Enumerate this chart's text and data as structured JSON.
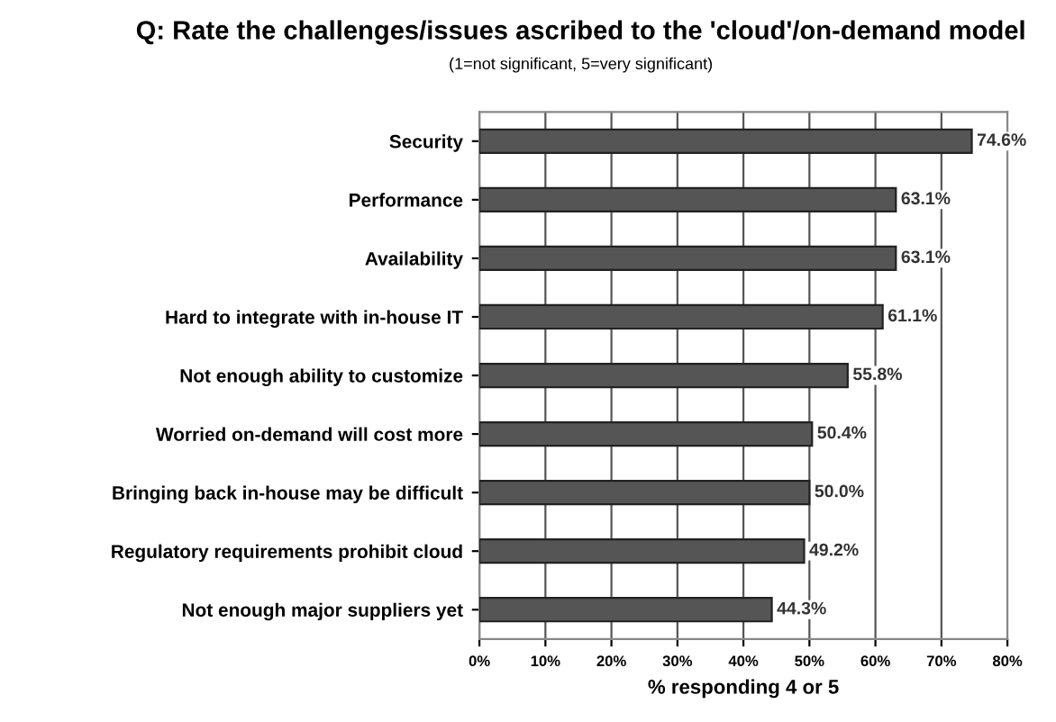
{
  "chart_data": {
    "type": "bar",
    "orientation": "horizontal",
    "title": "Q: Rate the challenges/issues ascribed to the 'cloud'/on-demand model",
    "subtitle": "(1=not significant, 5=very significant)",
    "xlabel": "% responding 4 or 5",
    "categories": [
      "Security",
      "Performance",
      "Availability",
      "Hard to integrate with in-house IT",
      "Not enough ability to customize",
      "Worried on-demand will cost more",
      "Bringing back in-house may be difficult",
      "Regulatory requirements prohibit cloud",
      "Not enough major suppliers yet"
    ],
    "values": [
      74.6,
      63.1,
      63.1,
      61.1,
      55.8,
      50.4,
      50.0,
      49.2,
      44.3
    ],
    "value_labels": [
      "74.6%",
      "63.1%",
      "63.1%",
      "61.1%",
      "55.8%",
      "50.4%",
      "50.0%",
      "49.2%",
      "44.3%"
    ],
    "color": "#555555",
    "xlim": [
      0,
      80
    ],
    "xticks": [
      {
        "value": 0,
        "label": "0%"
      },
      {
        "value": 10,
        "label": "10%"
      },
      {
        "value": 20,
        "label": "20%"
      },
      {
        "value": 30,
        "label": "30%"
      },
      {
        "value": 40,
        "label": "40%"
      },
      {
        "value": 50,
        "label": "50%"
      },
      {
        "value": 60,
        "label": "60%"
      },
      {
        "value": 70,
        "label": "70%"
      },
      {
        "value": 80,
        "label": "80%"
      }
    ],
    "grid": "x"
  }
}
